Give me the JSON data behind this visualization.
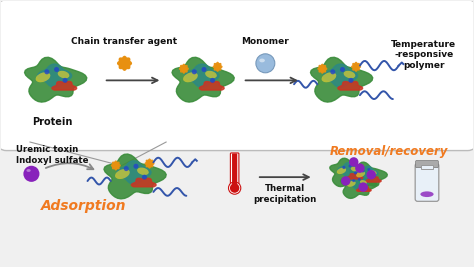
{
  "bg_color": "#f0f0f0",
  "box_bg": "#ffffff",
  "box_edge": "#bbbbbb",
  "label_chain": "Chain transfer agent",
  "label_monomer": "Monomer",
  "label_temp_poly": "Temperature\n-responsive\npolymer",
  "label_protein": "Protein",
  "label_uremic": "Uremic toxin\nIndoxyl sulfate",
  "label_adsorption": "Adsorption",
  "label_thermal": "Thermal\nprecipitation",
  "label_removal": "Removal/recovery",
  "arrow_color": "#444444",
  "gray_arrow": "#888888",
  "orange_label": "#f07a20",
  "protein_green": "#3a8c3a",
  "protein_green2": "#5aaa2a",
  "protein_teal": "#2a8888",
  "protein_red": "#cc3322",
  "protein_orange": "#dd8800",
  "protein_blue": "#2244cc",
  "protein_yellow": "#ddcc33",
  "chain_color": "#e89010",
  "monomer_color": "#99bbdd",
  "monomer_edge": "#7799bb",
  "polymer_color": "#3355aa",
  "therm_red": "#cc1111",
  "purple": "#8822bb",
  "tube_fill": "#e8f0f8",
  "tube_edge": "#999999",
  "tube_cap": "#aaaaaa"
}
